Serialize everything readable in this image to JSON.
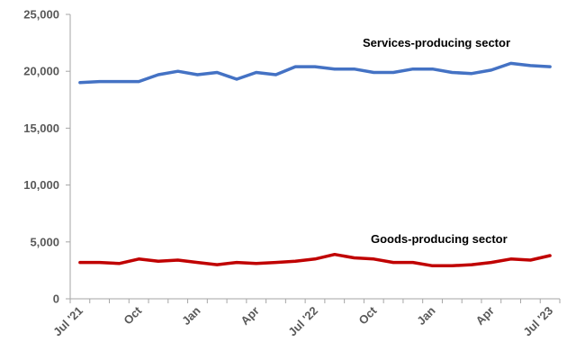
{
  "chart_data": {
    "type": "line",
    "title": "",
    "xlabel": "",
    "ylabel": "",
    "ylim": [
      0,
      25000
    ],
    "y_ticks": [
      0,
      5000,
      10000,
      15000,
      20000,
      25000
    ],
    "y_tick_labels": [
      "0",
      "5,000",
      "10,000",
      "15,000",
      "20,000",
      "25,000"
    ],
    "x": [
      "Jul '21",
      "Aug '21",
      "Sep '21",
      "Oct '21",
      "Nov '21",
      "Dec '21",
      "Jan '22",
      "Feb '22",
      "Mar '22",
      "Apr '22",
      "May '22",
      "Jun '22",
      "Jul '22",
      "Aug '22",
      "Sep '22",
      "Oct '22",
      "Nov '22",
      "Dec '22",
      "Jan '23",
      "Feb '23",
      "Mar '23",
      "Apr '23",
      "May '23",
      "Jun '23",
      "Jul '23"
    ],
    "x_tick_labels": [
      {
        "index": 0,
        "label": "Jul '21"
      },
      {
        "index": 3,
        "label": "Oct"
      },
      {
        "index": 6,
        "label": "Jan"
      },
      {
        "index": 9,
        "label": "Apr"
      },
      {
        "index": 12,
        "label": "Jul '22"
      },
      {
        "index": 15,
        "label": "Oct"
      },
      {
        "index": 18,
        "label": "Jan"
      },
      {
        "index": 21,
        "label": "Apr"
      },
      {
        "index": 24,
        "label": "Jul '23"
      }
    ],
    "grid": false,
    "legend": "none",
    "series": [
      {
        "name": "Services-producing sector",
        "color": "#4472C4",
        "values": [
          19000,
          19100,
          19100,
          19100,
          19700,
          20000,
          19700,
          19900,
          19300,
          19900,
          19700,
          20400,
          20400,
          20200,
          20200,
          19900,
          19900,
          20200,
          20200,
          19900,
          19800,
          20100,
          20700,
          20500,
          20400
        ]
      },
      {
        "name": "Goods-producing sector",
        "color": "#C00000",
        "values": [
          3200,
          3200,
          3100,
          3500,
          3300,
          3400,
          3200,
          3000,
          3200,
          3100,
          3200,
          3300,
          3500,
          3900,
          3600,
          3500,
          3200,
          3200,
          2900,
          2900,
          3000,
          3200,
          3500,
          3400,
          3800
        ]
      }
    ]
  }
}
